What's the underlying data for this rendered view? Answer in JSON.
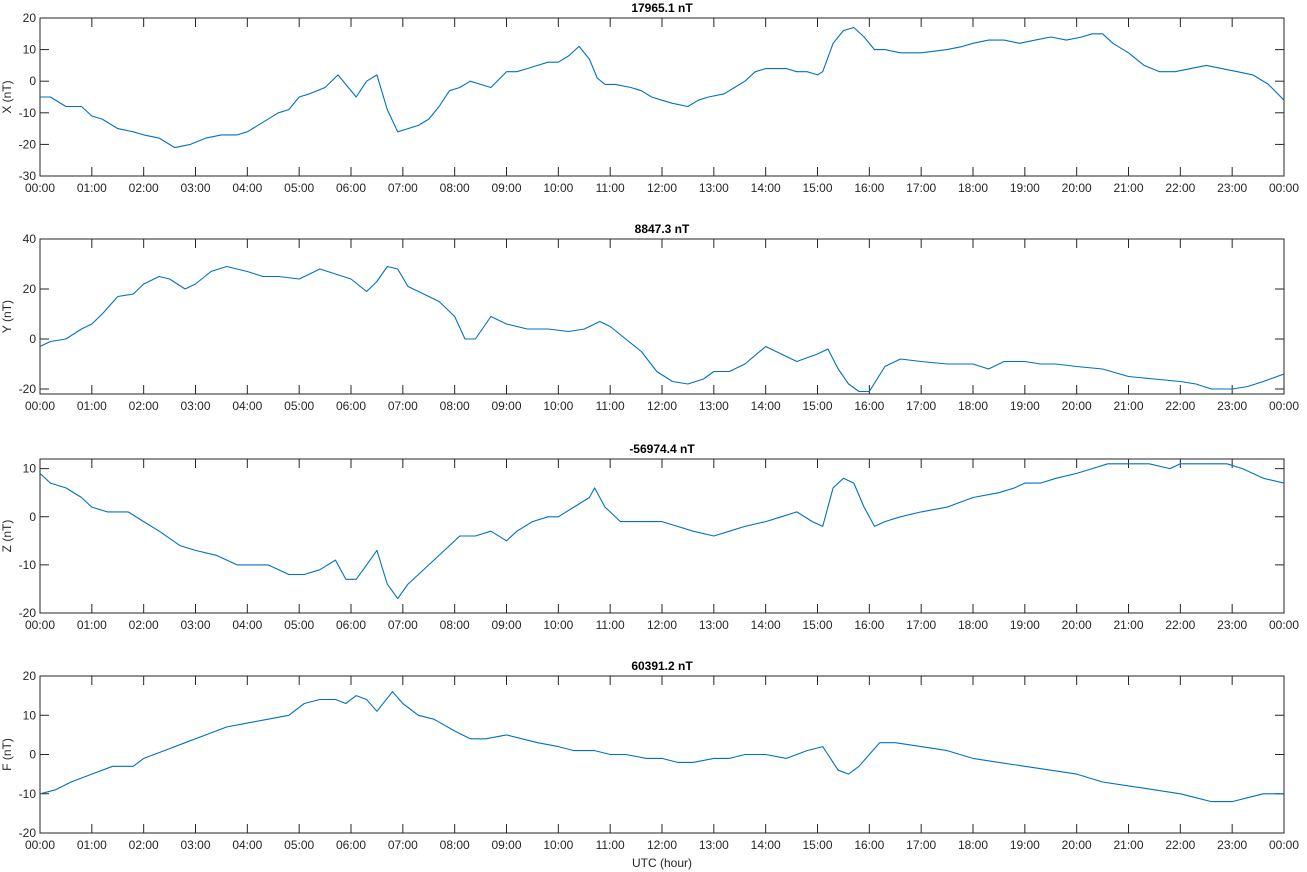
{
  "chart_data": [
    {
      "type": "line",
      "title": "17965.1 nT",
      "xlabel": "",
      "ylabel": "X (nT)",
      "ylim": [
        -30,
        20
      ],
      "yticks": [
        "-30",
        "-20",
        "-10",
        "0",
        "10",
        "20"
      ],
      "xlim": [
        0,
        24
      ],
      "xticks": [
        "00:00",
        "01:00",
        "02:00",
        "03:00",
        "04:00",
        "05:00",
        "06:00",
        "07:00",
        "08:00",
        "09:00",
        "10:00",
        "11:00",
        "12:00",
        "13:00",
        "14:00",
        "15:00",
        "16:00",
        "17:00",
        "18:00",
        "19:00",
        "20:00",
        "21:00",
        "22:00",
        "23:00",
        "00:00"
      ],
      "grid": false,
      "series_color": "#0072BD",
      "x": [
        0,
        0.2,
        0.5,
        0.8,
        1.0,
        1.2,
        1.5,
        1.8,
        2.0,
        2.3,
        2.6,
        2.9,
        3.2,
        3.5,
        3.8,
        4.0,
        4.3,
        4.6,
        4.8,
        5.0,
        5.2,
        5.5,
        5.75,
        5.9,
        6.1,
        6.3,
        6.5,
        6.7,
        6.9,
        7.1,
        7.3,
        7.5,
        7.7,
        7.9,
        8.1,
        8.3,
        8.5,
        8.7,
        9.0,
        9.2,
        9.4,
        9.6,
        9.8,
        10.0,
        10.2,
        10.4,
        10.6,
        10.75,
        10.9,
        11.1,
        11.4,
        11.6,
        11.8,
        12.0,
        12.2,
        12.5,
        12.7,
        12.9,
        13.2,
        13.4,
        13.6,
        13.8,
        14.0,
        14.2,
        14.4,
        14.6,
        14.8,
        15.0,
        15.1,
        15.3,
        15.5,
        15.7,
        15.9,
        16.1,
        16.3,
        16.6,
        17.0,
        17.5,
        17.8,
        18.0,
        18.3,
        18.6,
        18.9,
        19.2,
        19.5,
        19.8,
        20.1,
        20.3,
        20.5,
        20.7,
        21.0,
        21.3,
        21.6,
        21.9,
        22.2,
        22.5,
        22.8,
        23.1,
        23.4,
        23.7,
        24.0
      ],
      "values": [
        -5,
        -5,
        -8,
        -8,
        -11,
        -12,
        -15,
        -16,
        -17,
        -18,
        -21,
        -20,
        -18,
        -17,
        -17,
        -16,
        -13,
        -10,
        -9,
        -5,
        -4,
        -2,
        2,
        -1,
        -5,
        0,
        2,
        -9,
        -16,
        -15,
        -14,
        -12,
        -8,
        -3,
        -2,
        0,
        -1,
        -2,
        3,
        3,
        4,
        5,
        6,
        6,
        8,
        11,
        7,
        1,
        -1,
        -1,
        -2,
        -3,
        -5,
        -6,
        -7,
        -8,
        -6,
        -5,
        -4,
        -2,
        0,
        3,
        4,
        4,
        4,
        3,
        3,
        2,
        3,
        12,
        16,
        17,
        14,
        10,
        10,
        9,
        9,
        10,
        11,
        12,
        13,
        13,
        12,
        13,
        14,
        13,
        14,
        15,
        15,
        12,
        9,
        5,
        3,
        3,
        4,
        5,
        4,
        3,
        2,
        -1,
        -6
      ]
    },
    {
      "type": "line",
      "title": "8847.3 nT",
      "xlabel": "",
      "ylabel": "Y (nT)",
      "ylim": [
        -22,
        40
      ],
      "yticks": [
        "-20",
        "0",
        "20",
        "40"
      ],
      "xlim": [
        0,
        24
      ],
      "xticks": [
        "00:00",
        "01:00",
        "02:00",
        "03:00",
        "04:00",
        "05:00",
        "06:00",
        "07:00",
        "08:00",
        "09:00",
        "10:00",
        "11:00",
        "12:00",
        "13:00",
        "14:00",
        "15:00",
        "16:00",
        "17:00",
        "18:00",
        "19:00",
        "20:00",
        "21:00",
        "22:00",
        "23:00",
        "00:00"
      ],
      "grid": false,
      "series_color": "#0072BD",
      "x": [
        0,
        0.2,
        0.5,
        0.8,
        1.0,
        1.2,
        1.5,
        1.8,
        2.0,
        2.3,
        2.5,
        2.8,
        3.0,
        3.3,
        3.6,
        4.0,
        4.3,
        4.6,
        5.0,
        5.4,
        5.7,
        6.0,
        6.3,
        6.5,
        6.7,
        6.9,
        7.1,
        7.4,
        7.7,
        8.0,
        8.2,
        8.4,
        8.7,
        9.0,
        9.4,
        9.8,
        10.2,
        10.5,
        10.8,
        11.0,
        11.3,
        11.6,
        11.9,
        12.2,
        12.5,
        12.8,
        13.0,
        13.3,
        13.6,
        14.0,
        14.3,
        14.6,
        15.0,
        15.2,
        15.4,
        15.6,
        15.8,
        16.0,
        16.3,
        16.6,
        17.0,
        17.5,
        18.0,
        18.3,
        18.6,
        19.0,
        19.3,
        19.6,
        20.0,
        20.5,
        21.0,
        21.5,
        22.0,
        22.3,
        22.6,
        23.0,
        23.3,
        23.6,
        24.0
      ],
      "values": [
        -3,
        -1,
        0,
        4,
        6,
        10,
        17,
        18,
        22,
        25,
        24,
        20,
        22,
        27,
        29,
        27,
        25,
        25,
        24,
        28,
        26,
        24,
        19,
        23,
        29,
        28,
        21,
        18,
        15,
        9,
        0,
        0,
        9,
        6,
        4,
        4,
        3,
        4,
        7,
        5,
        0,
        -5,
        -13,
        -17,
        -18,
        -16,
        -13,
        -13,
        -10,
        -3,
        -6,
        -9,
        -6,
        -4,
        -12,
        -18,
        -21,
        -21,
        -11,
        -8,
        -9,
        -10,
        -10,
        -12,
        -9,
        -9,
        -10,
        -10,
        -11,
        -12,
        -15,
        -16,
        -17,
        -18,
        -20,
        -20,
        -19,
        -17,
        -14
      ]
    },
    {
      "type": "line",
      "title": "-56974.4 nT",
      "xlabel": "",
      "ylabel": "Z (nT)",
      "ylim": [
        -20,
        12
      ],
      "yticks": [
        "-20",
        "-10",
        "0",
        "10"
      ],
      "xlim": [
        0,
        24
      ],
      "xticks": [
        "00:00",
        "01:00",
        "02:00",
        "03:00",
        "04:00",
        "05:00",
        "06:00",
        "07:00",
        "08:00",
        "09:00",
        "10:00",
        "11:00",
        "12:00",
        "13:00",
        "14:00",
        "15:00",
        "16:00",
        "17:00",
        "18:00",
        "19:00",
        "20:00",
        "21:00",
        "22:00",
        "23:00",
        "00:00"
      ],
      "grid": false,
      "series_color": "#0072BD",
      "x": [
        0,
        0.2,
        0.5,
        0.8,
        1.0,
        1.3,
        1.7,
        2.0,
        2.3,
        2.7,
        3.0,
        3.4,
        3.8,
        4.1,
        4.4,
        4.8,
        5.1,
        5.4,
        5.7,
        5.9,
        6.1,
        6.3,
        6.5,
        6.7,
        6.9,
        7.1,
        7.3,
        7.6,
        7.9,
        8.1,
        8.4,
        8.7,
        9.0,
        9.2,
        9.5,
        9.8,
        10.0,
        10.3,
        10.6,
        10.7,
        10.9,
        11.2,
        11.6,
        12.0,
        12.3,
        12.6,
        13.0,
        13.3,
        13.6,
        14.0,
        14.3,
        14.6,
        14.9,
        15.1,
        15.3,
        15.5,
        15.7,
        15.9,
        16.1,
        16.3,
        16.6,
        17.0,
        17.5,
        18.0,
        18.5,
        18.8,
        19.0,
        19.3,
        19.6,
        20.0,
        20.3,
        20.6,
        21.0,
        21.4,
        21.8,
        22.0,
        22.3,
        22.6,
        22.9,
        23.2,
        23.6,
        24.0
      ],
      "values": [
        9,
        7,
        6,
        4,
        2,
        1,
        1,
        -1,
        -3,
        -6,
        -7,
        -8,
        -10,
        -10,
        -10,
        -12,
        -12,
        -11,
        -9,
        -13,
        -13,
        -10,
        -7,
        -14,
        -17,
        -14,
        -12,
        -9,
        -6,
        -4,
        -4,
        -3,
        -5,
        -3,
        -1,
        0,
        0,
        2,
        4,
        6,
        2,
        -1,
        -1,
        -1,
        -2,
        -3,
        -4,
        -3,
        -2,
        -1,
        0,
        1,
        -1,
        -2,
        6,
        8,
        7,
        2,
        -2,
        -1,
        0,
        1,
        2,
        4,
        5,
        6,
        7,
        7,
        8,
        9,
        10,
        11,
        11,
        11,
        10,
        11,
        11,
        11,
        11,
        10,
        8,
        7
      ]
    },
    {
      "type": "line",
      "title": "60391.2 nT",
      "xlabel": "UTC (hour)",
      "ylabel": "F (nT)",
      "ylim": [
        -20,
        20
      ],
      "yticks": [
        "-20",
        "-10",
        "0",
        "10",
        "20"
      ],
      "xlim": [
        0,
        24
      ],
      "xticks": [
        "00:00",
        "01:00",
        "02:00",
        "03:00",
        "04:00",
        "05:00",
        "06:00",
        "07:00",
        "08:00",
        "09:00",
        "10:00",
        "11:00",
        "12:00",
        "13:00",
        "14:00",
        "15:00",
        "16:00",
        "17:00",
        "18:00",
        "19:00",
        "20:00",
        "21:00",
        "22:00",
        "23:00",
        "00:00"
      ],
      "grid": false,
      "series_color": "#0072BD",
      "x": [
        0,
        0.3,
        0.6,
        1.0,
        1.4,
        1.8,
        2.0,
        2.4,
        2.8,
        3.2,
        3.6,
        4.0,
        4.4,
        4.8,
        5.1,
        5.4,
        5.7,
        5.9,
        6.1,
        6.3,
        6.5,
        6.8,
        7.0,
        7.3,
        7.6,
        8.0,
        8.3,
        8.6,
        9.0,
        9.3,
        9.6,
        10.0,
        10.3,
        10.7,
        11.0,
        11.3,
        11.7,
        12.0,
        12.3,
        12.6,
        13.0,
        13.3,
        13.6,
        14.0,
        14.4,
        14.8,
        15.1,
        15.2,
        15.4,
        15.6,
        15.8,
        16.0,
        16.2,
        16.5,
        17.0,
        17.5,
        18.0,
        18.5,
        19.0,
        19.5,
        20.0,
        20.5,
        21.0,
        21.5,
        22.0,
        22.3,
        22.6,
        23.0,
        23.3,
        23.6,
        24.0
      ],
      "values": [
        -10,
        -9,
        -7,
        -5,
        -3,
        -3,
        -1,
        1,
        3,
        5,
        7,
        8,
        9,
        10,
        13,
        14,
        14,
        13,
        15,
        14,
        11,
        16,
        13,
        10,
        9,
        6,
        4,
        4,
        5,
        4,
        3,
        2,
        1,
        1,
        0,
        0,
        -1,
        -1,
        -2,
        -2,
        -1,
        -1,
        0,
        0,
        -1,
        1,
        2,
        0,
        -4,
        -5,
        -3,
        0,
        3,
        3,
        2,
        1,
        -1,
        -2,
        -3,
        -4,
        -5,
        -7,
        -8,
        -9,
        -10,
        -11,
        -12,
        -12,
        -11,
        -10,
        -10
      ]
    }
  ]
}
